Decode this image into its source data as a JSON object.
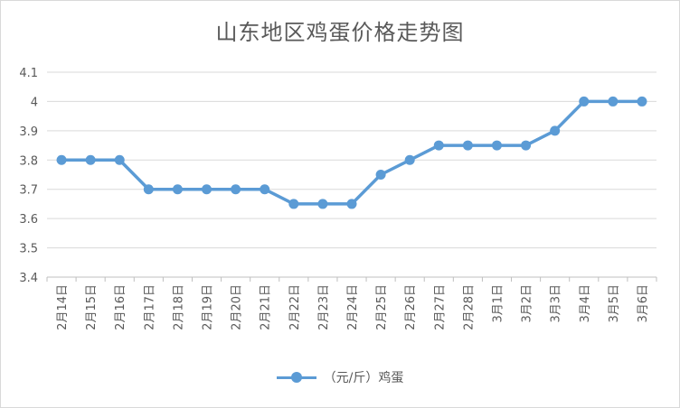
{
  "chart_data": {
    "type": "line",
    "title": "山东地区鸡蛋价格走势图",
    "categories": [
      "2月14日",
      "2月15日",
      "2月16日",
      "2月17日",
      "2月18日",
      "2月19日",
      "2月20日",
      "2月21日",
      "2月22日",
      "2月23日",
      "2月24日",
      "2月25日",
      "2月26日",
      "2月27日",
      "2月28日",
      "3月1日",
      "3月2日",
      "3月3日",
      "3月4日",
      "3月5日",
      "3月6日"
    ],
    "series": [
      {
        "name": "（元/斤）鸡蛋",
        "color": "#5b9bd5",
        "values": [
          3.8,
          3.8,
          3.8,
          3.7,
          3.7,
          3.7,
          3.7,
          3.7,
          3.65,
          3.65,
          3.65,
          3.75,
          3.8,
          3.85,
          3.85,
          3.85,
          3.85,
          3.9,
          4.0,
          4.0,
          4.0
        ]
      }
    ],
    "ylim": [
      3.4,
      4.1
    ],
    "yticks": [
      "3.4",
      "3.5",
      "3.6",
      "3.7",
      "3.8",
      "3.9",
      "4",
      "4.1"
    ],
    "grid": true,
    "legend_position": "bottom"
  }
}
